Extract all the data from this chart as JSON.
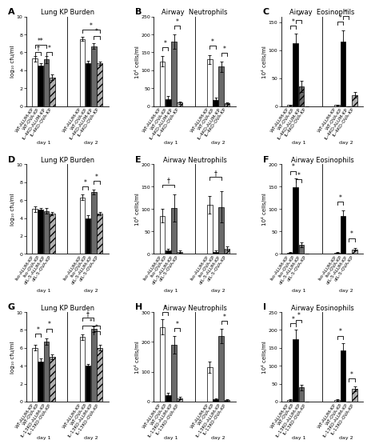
{
  "panels": {
    "A": {
      "title": "Lung KP Burden",
      "ylabel": "log₁₀ cfu/ml",
      "ylim": [
        0,
        10
      ],
      "yticks": [
        0,
        2,
        4,
        6,
        8,
        10
      ],
      "categories": [
        "WT-ALUM-KP",
        "WT-OVA-KP",
        "IL-4KO-ALUM-KP",
        "IL-4KO-OVA-KP"
      ],
      "values_d1": [
        5.3,
        4.5,
        5.2,
        3.2
      ],
      "values_d2": [
        7.5,
        4.8,
        6.7,
        4.8
      ],
      "errors_d1": [
        0.3,
        0.3,
        0.4,
        0.3
      ],
      "errors_d2": [
        0.2,
        0.3,
        0.3,
        0.2
      ],
      "colors": [
        "white",
        "black",
        "dimgray",
        "#b0b0b0"
      ],
      "hatches": [
        "",
        "",
        "",
        "////"
      ],
      "sig_lines_d1": [
        [
          "†",
          0,
          1,
          5.7
        ],
        [
          "**",
          0,
          2,
          6.5
        ],
        [
          "*",
          2,
          3,
          5.7
        ]
      ],
      "sig_lines_d2": [
        [
          "*",
          0,
          3,
          8.2
        ],
        [
          "*",
          2,
          3,
          7.5
        ]
      ]
    },
    "B": {
      "title": "Airway  Neutrophils",
      "ylabel": "10⁴ cells/ml",
      "ylim": [
        0,
        250
      ],
      "yticks": [
        0,
        50,
        100,
        150,
        200,
        250
      ],
      "categories": [
        "WT-ALUM-KP",
        "WT-OVA-KP",
        "IL-4KO-ALUM-KP",
        "IL-4KO-OVA-KP"
      ],
      "values_d1": [
        125,
        20,
        180,
        10
      ],
      "values_d2": [
        130,
        18,
        110,
        8
      ],
      "errors_d1": [
        15,
        8,
        20,
        3
      ],
      "errors_d2": [
        12,
        5,
        15,
        2
      ],
      "colors": [
        "white",
        "black",
        "dimgray",
        "#b0b0b0"
      ],
      "hatches": [
        "",
        "",
        "",
        "////"
      ],
      "sig_lines_d1": [
        [
          "*",
          0,
          1,
          155
        ],
        [
          "*",
          2,
          3,
          215
        ]
      ],
      "sig_lines_d2": [
        [
          "*",
          0,
          1,
          160
        ],
        [
          "*",
          2,
          3,
          140
        ]
      ]
    },
    "C": {
      "title": "Airway  Eosinophils",
      "ylabel": "10⁴ cells/ml",
      "ylim": [
        0,
        160
      ],
      "yticks": [
        0,
        50,
        100,
        150
      ],
      "categories": [
        "WT-ALUM-KP",
        "WT-OVA-KP",
        "IL-4KO-ALUM-KP",
        "IL-4KO-OVA-KP"
      ],
      "values_d1": [
        2,
        112,
        35,
        0
      ],
      "values_d2": [
        2,
        115,
        0,
        20
      ],
      "errors_d1": [
        1,
        18,
        10,
        0
      ],
      "errors_d2": [
        1,
        20,
        0,
        5
      ],
      "colors": [
        "white",
        "black",
        "dimgray",
        "#b0b0b0"
      ],
      "hatches": [
        "",
        "",
        "////",
        "////"
      ],
      "sig_lines_d1": [
        [
          "*",
          0,
          1,
          138
        ],
        [
          "*",
          1,
          2,
          148
        ]
      ],
      "sig_lines_d2": [
        [
          "*",
          0,
          1,
          145
        ],
        [
          "*",
          1,
          2,
          155
        ]
      ]
    },
    "D": {
      "title": "Lung KP Burden",
      "ylabel": "log₁₀ cfu/ml",
      "ylim": [
        0,
        10
      ],
      "yticks": [
        0,
        2,
        4,
        6,
        8,
        10
      ],
      "categories": [
        "Iso-ALUM-KP",
        "Iso-OVA-KP",
        "αIL-5-ALUM-KP",
        "αIL-5-OVA-KP"
      ],
      "values_d1": [
        5.0,
        4.9,
        4.8,
        4.5
      ],
      "values_d2": [
        6.3,
        4.0,
        6.9,
        4.5
      ],
      "errors_d1": [
        0.3,
        0.2,
        0.3,
        0.2
      ],
      "errors_d2": [
        0.3,
        0.3,
        0.3,
        0.2
      ],
      "colors": [
        "white",
        "black",
        "dimgray",
        "#b0b0b0"
      ],
      "hatches": [
        "",
        "",
        "",
        "////"
      ],
      "sig_lines_d1": [],
      "sig_lines_d2": [
        [
          "*",
          0,
          1,
          7.2
        ],
        [
          "*",
          2,
          3,
          7.8
        ]
      ]
    },
    "E": {
      "title": "Airway Neutrophils",
      "ylabel": "10⁴ cells/ml",
      "ylim": [
        0,
        200
      ],
      "yticks": [
        0,
        50,
        100,
        150,
        200
      ],
      "categories": [
        "Iso-ALUM-KP",
        "Iso-OVA-KP",
        "αIL-5-ALUM-KP",
        "αIL-5-OVA-KP"
      ],
      "values_d1": [
        85,
        8,
        102,
        5
      ],
      "values_d2": [
        110,
        5,
        105,
        12
      ],
      "errors_d1": [
        15,
        3,
        30,
        2
      ],
      "errors_d2": [
        20,
        2,
        35,
        5
      ],
      "colors": [
        "white",
        "black",
        "dimgray",
        "#b0b0b0"
      ],
      "hatches": [
        "",
        "",
        "",
        "////"
      ],
      "sig_lines_d1": [
        [
          "†",
          0,
          2,
          148
        ]
      ],
      "sig_lines_d2": [
        [
          "†",
          0,
          2,
          165
        ]
      ]
    },
    "F": {
      "title": "Airway Eosinophils",
      "ylabel": "10⁴ cells/ml",
      "ylim": [
        0,
        200
      ],
      "yticks": [
        0,
        50,
        100,
        150,
        200
      ],
      "categories": [
        "Iso-ALUM-KP",
        "Iso-OVA-KP",
        "αIL-5-ALUM-KP",
        "αIL-5-OVA-KP"
      ],
      "values_d1": [
        3,
        148,
        20,
        0
      ],
      "values_d2": [
        3,
        85,
        0,
        10
      ],
      "errors_d1": [
        1,
        20,
        5,
        0
      ],
      "errors_d2": [
        1,
        12,
        0,
        3
      ],
      "colors": [
        "white",
        "black",
        "dimgray",
        "#b0b0b0"
      ],
      "hatches": [
        "",
        "",
        "",
        "////"
      ],
      "sig_lines_d1": [
        [
          "*",
          0,
          1,
          178
        ],
        [
          "*",
          1,
          2,
          160
        ]
      ],
      "sig_lines_d2": [
        [
          "*",
          0,
          1,
          110
        ],
        [
          "*",
          2,
          3,
          28
        ]
      ]
    },
    "G": {
      "title": "Lung KP Burden",
      "ylabel": "log₁₀ cfu/ml",
      "ylim": [
        0,
        10
      ],
      "yticks": [
        0,
        2,
        4,
        6,
        8,
        10
      ],
      "categories": [
        "WT-ALUM-KP",
        "WT-OVA-KP",
        "IL-13KO-ALUM-KP",
        "IL-13KO-OVA-KP"
      ],
      "values_d1": [
        6.0,
        4.5,
        6.7,
        5.0
      ],
      "values_d2": [
        7.2,
        4.0,
        8.1,
        6.0
      ],
      "errors_d1": [
        0.3,
        0.3,
        0.4,
        0.3
      ],
      "errors_d2": [
        0.3,
        0.2,
        0.3,
        0.3
      ],
      "colors": [
        "white",
        "black",
        "dimgray",
        "#b0b0b0"
      ],
      "hatches": [
        "",
        "",
        "",
        "////"
      ],
      "sig_lines_d1": [
        [
          "*",
          0,
          1,
          7.2
        ],
        [
          "*",
          2,
          3,
          7.8
        ]
      ],
      "sig_lines_d2": [
        [
          "†",
          0,
          2,
          9.0
        ],
        [
          "*",
          0,
          3,
          8.1
        ],
        [
          "*",
          2,
          3,
          7.5
        ]
      ]
    },
    "H": {
      "title": "Airway Neutrophils",
      "ylabel": "10⁴ cells/ml",
      "ylim": [
        0,
        300
      ],
      "yticks": [
        0,
        100,
        200,
        300
      ],
      "categories": [
        "WT-ALUM-KP",
        "WT-OVA-KP",
        "IL-13KO-ALUM-KP",
        "IL-13KO-OVA-KP"
      ],
      "values_d1": [
        250,
        22,
        190,
        12
      ],
      "values_d2": [
        115,
        8,
        220,
        5
      ],
      "errors_d1": [
        25,
        8,
        30,
        4
      ],
      "errors_d2": [
        18,
        3,
        25,
        2
      ],
      "colors": [
        "white",
        "black",
        "dimgray",
        "#b0b0b0"
      ],
      "hatches": [
        "",
        "",
        "",
        "////"
      ],
      "sig_lines_d1": [
        [
          "*",
          0,
          1,
          290
        ],
        [
          "*",
          2,
          3,
          235
        ]
      ],
      "sig_lines_d2": [
        [
          "*",
          2,
          3,
          260
        ]
      ]
    },
    "I": {
      "title": "Airway Eosinophils",
      "ylabel": "10⁴ cells/ml",
      "ylim": [
        0,
        250
      ],
      "yticks": [
        0,
        50,
        100,
        150,
        200,
        250
      ],
      "categories": [
        "WT-ALUM-KP",
        "WT-OVA-KP",
        "IL-13KO-ALUM-KP",
        "IL-13KO-OVA-KP"
      ],
      "values_d1": [
        5,
        175,
        40,
        0
      ],
      "values_d2": [
        5,
        142,
        0,
        35
      ],
      "errors_d1": [
        2,
        25,
        8,
        0
      ],
      "errors_d2": [
        2,
        20,
        0,
        7
      ],
      "colors": [
        "white",
        "black",
        "dimgray",
        "#b0b0b0"
      ],
      "hatches": [
        "",
        "",
        "",
        "////"
      ],
      "sig_lines_d1": [
        [
          "*",
          0,
          1,
          210
        ],
        [
          "*",
          1,
          2,
          220
        ]
      ],
      "sig_lines_d2": [
        [
          "*",
          0,
          1,
          175
        ],
        [
          "*",
          2,
          3,
          55
        ]
      ]
    }
  },
  "bar_width": 0.55,
  "capsize": 1.5,
  "fontsize_title": 6.0,
  "fontsize_label": 5.0,
  "fontsize_tick": 4.5,
  "fontsize_sig": 5.5,
  "panel_label_size": 8
}
